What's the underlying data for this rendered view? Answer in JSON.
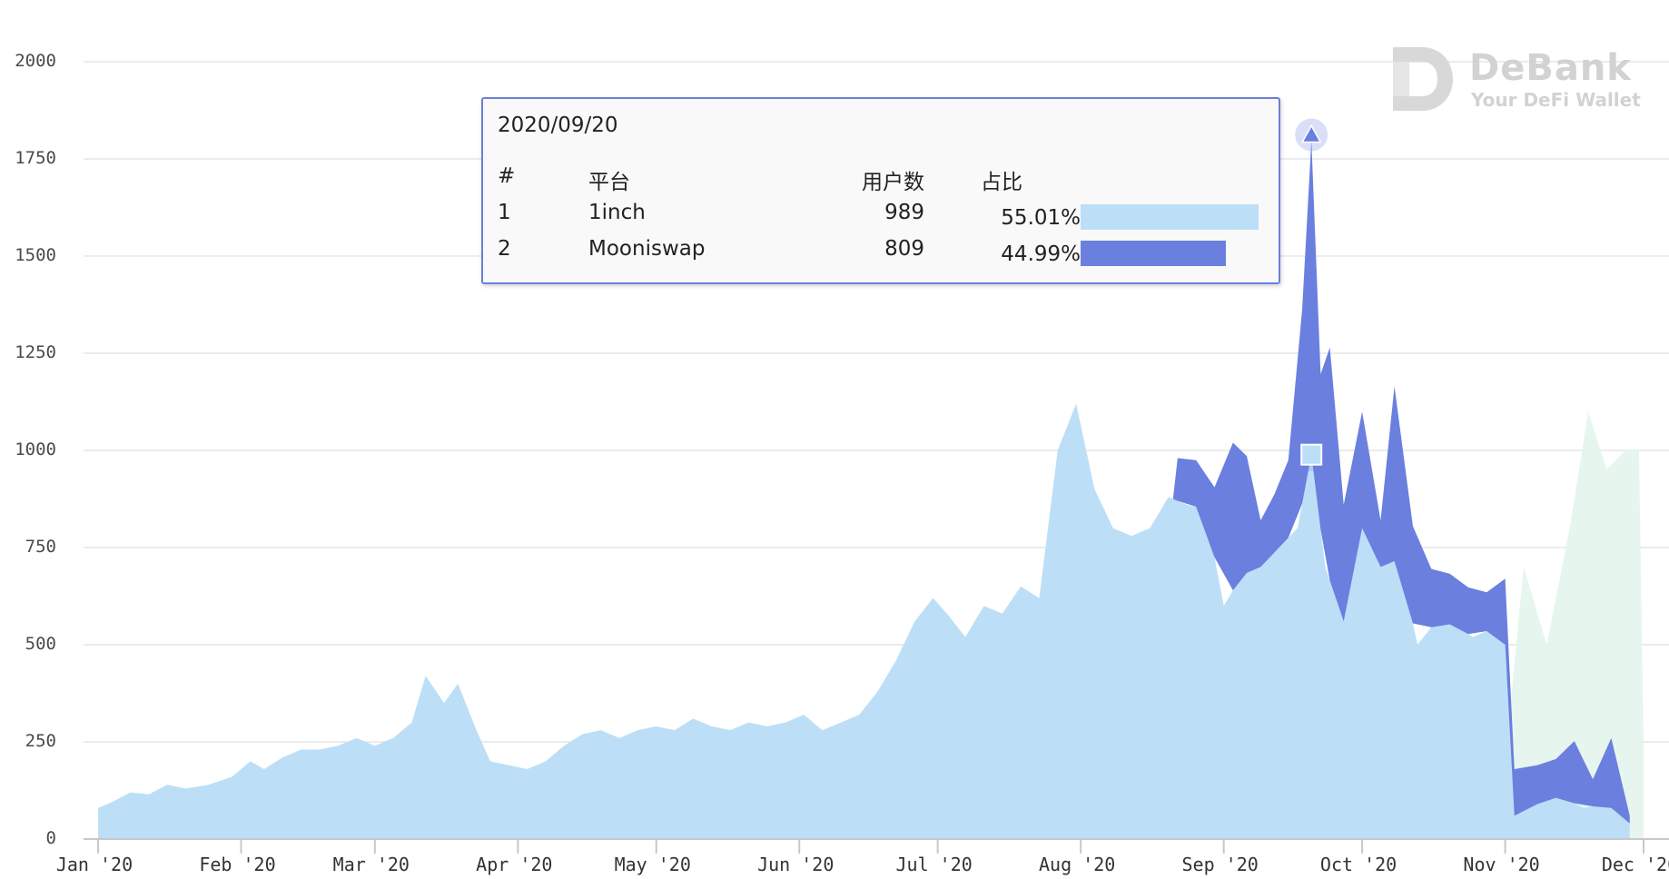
{
  "chart_data": {
    "type": "area",
    "stacked": true,
    "ylim": [
      0,
      2000
    ],
    "y_ticks": [
      "0",
      "250",
      "500",
      "750",
      "1000",
      "1250",
      "1500",
      "1750",
      "2000"
    ],
    "x_ticks": [
      "Jan '20",
      "Feb '20",
      "Mar '20",
      "Apr '20",
      "May '20",
      "Jun '20",
      "Jul '20",
      "Aug '20",
      "Sep '20",
      "Oct '20",
      "Nov '20",
      "Dec '20"
    ],
    "x_range": [
      "2020-01-01",
      "2020-12-01"
    ],
    "grid": "horizontal",
    "colors": {
      "series1": "#bcdff7",
      "series2": "#6b7fdf",
      "series3": "#e3f5ec",
      "grid": "#e6e6e6",
      "axis": "#c8c8c8"
    },
    "series": [
      {
        "name": "1inch",
        "color": "#bcdff7",
        "points": [
          [
            "2020-01-01",
            80
          ],
          [
            "2020-01-04",
            95
          ],
          [
            "2020-01-08",
            120
          ],
          [
            "2020-01-12",
            115
          ],
          [
            "2020-01-16",
            140
          ],
          [
            "2020-01-20",
            130
          ],
          [
            "2020-01-25",
            140
          ],
          [
            "2020-01-30",
            160
          ],
          [
            "2020-02-03",
            200
          ],
          [
            "2020-02-06",
            180
          ],
          [
            "2020-02-10",
            210
          ],
          [
            "2020-02-14",
            230
          ],
          [
            "2020-02-18",
            230
          ],
          [
            "2020-02-22",
            240
          ],
          [
            "2020-02-26",
            260
          ],
          [
            "2020-03-01",
            240
          ],
          [
            "2020-03-05",
            260
          ],
          [
            "2020-03-09",
            300
          ],
          [
            "2020-03-12",
            420
          ],
          [
            "2020-03-16",
            350
          ],
          [
            "2020-03-19",
            400
          ],
          [
            "2020-03-23",
            280
          ],
          [
            "2020-03-26",
            200
          ],
          [
            "2020-03-30",
            190
          ],
          [
            "2020-04-03",
            180
          ],
          [
            "2020-04-07",
            200
          ],
          [
            "2020-04-11",
            240
          ],
          [
            "2020-04-15",
            270
          ],
          [
            "2020-04-19",
            280
          ],
          [
            "2020-04-23",
            260
          ],
          [
            "2020-04-27",
            280
          ],
          [
            "2020-05-01",
            290
          ],
          [
            "2020-05-05",
            280
          ],
          [
            "2020-05-09",
            310
          ],
          [
            "2020-05-13",
            290
          ],
          [
            "2020-05-17",
            280
          ],
          [
            "2020-05-21",
            300
          ],
          [
            "2020-05-25",
            290
          ],
          [
            "2020-05-29",
            300
          ],
          [
            "2020-06-02",
            320
          ],
          [
            "2020-06-06",
            280
          ],
          [
            "2020-06-10",
            300
          ],
          [
            "2020-06-14",
            320
          ],
          [
            "2020-06-18",
            380
          ],
          [
            "2020-06-22",
            460
          ],
          [
            "2020-06-26",
            560
          ],
          [
            "2020-06-30",
            620
          ],
          [
            "2020-07-03",
            580
          ],
          [
            "2020-07-07",
            520
          ],
          [
            "2020-07-11",
            600
          ],
          [
            "2020-07-15",
            580
          ],
          [
            "2020-07-19",
            650
          ],
          [
            "2020-07-23",
            620
          ],
          [
            "2020-07-27",
            1000
          ],
          [
            "2020-07-31",
            1120
          ],
          [
            "2020-08-04",
            900
          ],
          [
            "2020-08-08",
            800
          ],
          [
            "2020-08-12",
            780
          ],
          [
            "2020-08-16",
            800
          ],
          [
            "2020-08-20",
            880
          ],
          [
            "2020-08-24",
            860
          ],
          [
            "2020-08-28",
            850
          ],
          [
            "2020-09-01",
            600
          ],
          [
            "2020-09-05",
            680
          ],
          [
            "2020-09-09",
            700
          ],
          [
            "2020-09-13",
            750
          ],
          [
            "2020-09-17",
            800
          ],
          [
            "2020-09-20",
            989
          ],
          [
            "2020-09-23",
            700
          ],
          [
            "2020-09-27",
            560
          ],
          [
            "2020-10-01",
            800
          ],
          [
            "2020-10-05",
            700
          ],
          [
            "2020-10-09",
            720
          ],
          [
            "2020-10-13",
            500
          ],
          [
            "2020-10-17",
            560
          ],
          [
            "2020-10-21",
            550
          ],
          [
            "2020-10-25",
            520
          ],
          [
            "2020-10-29",
            540
          ],
          [
            "2020-11-01",
            500
          ],
          [
            "2020-11-03",
            60
          ],
          [
            "2020-11-08",
            90
          ],
          [
            "2020-11-13",
            110
          ],
          [
            "2020-11-18",
            80
          ],
          [
            "2020-11-23",
            90
          ],
          [
            "2020-11-28",
            40
          ]
        ]
      },
      {
        "name": "Mooniswap",
        "color": "#6b7fdf",
        "points": [
          [
            "2020-08-21",
            0
          ],
          [
            "2020-08-22",
            110
          ],
          [
            "2020-08-26",
            120
          ],
          [
            "2020-08-30",
            180
          ],
          [
            "2020-09-03",
            380
          ],
          [
            "2020-09-06",
            300
          ],
          [
            "2020-09-09",
            120
          ],
          [
            "2020-09-12",
            150
          ],
          [
            "2020-09-15",
            200
          ],
          [
            "2020-09-18",
            500
          ],
          [
            "2020-09-20",
            809
          ],
          [
            "2020-09-22",
            400
          ],
          [
            "2020-09-24",
            600
          ],
          [
            "2020-09-27",
            300
          ],
          [
            "2020-10-01",
            300
          ],
          [
            "2020-10-05",
            120
          ],
          [
            "2020-10-08",
            450
          ],
          [
            "2020-10-12",
            250
          ],
          [
            "2020-10-16",
            150
          ],
          [
            "2020-10-20",
            130
          ],
          [
            "2020-10-24",
            120
          ],
          [
            "2020-10-28",
            100
          ],
          [
            "2020-11-01",
            170
          ],
          [
            "2020-11-03",
            120
          ],
          [
            "2020-11-08",
            100
          ],
          [
            "2020-11-12",
            100
          ],
          [
            "2020-11-16",
            160
          ],
          [
            "2020-11-20",
            70
          ],
          [
            "2020-11-24",
            180
          ],
          [
            "2020-11-28",
            20
          ]
        ]
      },
      {
        "name": "",
        "color": "#e3f5ec",
        "points": [
          [
            "2020-11-01",
            200
          ],
          [
            "2020-11-05",
            700
          ],
          [
            "2020-11-10",
            500
          ],
          [
            "2020-11-15",
            800
          ],
          [
            "2020-11-19",
            1100
          ],
          [
            "2020-11-23",
            950
          ],
          [
            "2020-11-27",
            1000
          ],
          [
            "2020-11-30",
            1000
          ],
          [
            "2020-12-01",
            250
          ]
        ]
      }
    ],
    "highlight_date": "2020-09-20"
  },
  "tooltip": {
    "date": "2020/09/20",
    "headers": {
      "index": "#",
      "platform": "平台",
      "users": "用户数",
      "share": "占比"
    },
    "rows": [
      {
        "index": "1",
        "platform": "1inch",
        "users": "989",
        "share": "55.01%",
        "share_value": 0.5501,
        "color": "#bcdff7"
      },
      {
        "index": "2",
        "platform": "Mooniswap",
        "users": "809",
        "share": "44.99%",
        "share_value": 0.4499,
        "color": "#6b7fdf"
      }
    ]
  },
  "watermark": {
    "name": "DeBank",
    "tagline": "Your DeFi Wallet",
    "icon": "debank-logo-icon",
    "color": "#d2d2d2"
  }
}
